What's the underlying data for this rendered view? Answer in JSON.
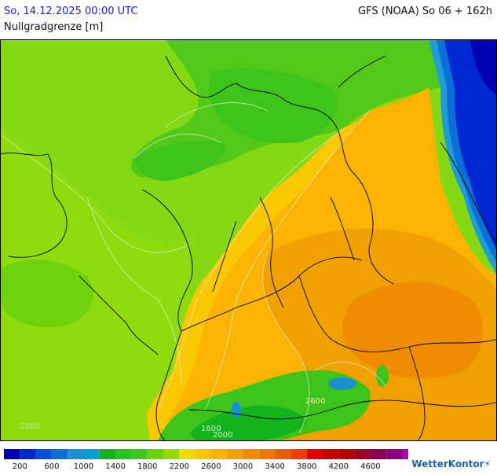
{
  "header": {
    "date": "So, 14.12.2025 00:00 UTC",
    "model": "GFS (NOAA) So 06 + 162h",
    "parameter": "Nullgradgrenze [m]"
  },
  "logo": {
    "text": "WetterKontor"
  },
  "map_labels": [
    {
      "text": "2600"
    },
    {
      "text": "2200"
    },
    {
      "text": "1600"
    },
    {
      "text": "2000"
    }
  ],
  "legend": {
    "swatches": [
      "#0000b4",
      "#0028d2",
      "#0050e0",
      "#0a6fd8",
      "#1c8ed4",
      "#00a0d2",
      "#12b41e",
      "#1ec81e",
      "#3cc81e",
      "#6ed20a",
      "#96dc00",
      "#f0dc00",
      "#fac800",
      "#fab400",
      "#f0a000",
      "#f08c00",
      "#f07800",
      "#f05a00",
      "#f03c00",
      "#e60000",
      "#cd0000",
      "#b40000",
      "#a00028",
      "#8c0050",
      "#8c0082",
      "#b400b4"
    ],
    "labels": [
      "200",
      "600",
      "1000",
      "1400",
      "1800",
      "2200",
      "2600",
      "3000",
      "3400",
      "3800",
      "4200",
      "4600"
    ]
  }
}
